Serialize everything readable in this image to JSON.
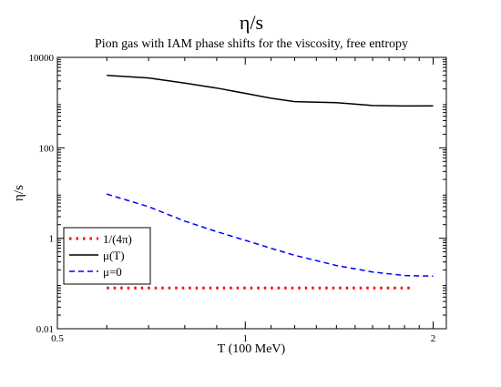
{
  "chart_data": {
    "type": "line",
    "title": "η/s",
    "subtitle": "Pion gas with IAM phase shifts for the viscosity, free entropy",
    "xlabel": "T (100 MeV)",
    "ylabel": "η/s",
    "xscale": "log",
    "yscale": "log",
    "xlim": [
      0.5,
      2.1
    ],
    "ylim": [
      0.01,
      10000
    ],
    "xticks": [
      {
        "value": 0.5,
        "label": "0.5"
      },
      {
        "value": 1,
        "label": "1"
      },
      {
        "value": 2,
        "label": "2"
      }
    ],
    "yticks": [
      {
        "value": 0.01,
        "label": "0.01"
      },
      {
        "value": 1,
        "label": "1"
      },
      {
        "value": 100,
        "label": "100"
      },
      {
        "value": 10000,
        "label": "10000"
      }
    ],
    "grid": false,
    "legend_position": "lower-left",
    "series": [
      {
        "name": "1/(4π)",
        "color": "#ff0000",
        "style": "dotted",
        "x": [
          0.6,
          0.8,
          1.0,
          1.2,
          1.4,
          1.6,
          1.85
        ],
        "y": [
          0.0796,
          0.0796,
          0.0796,
          0.0796,
          0.0796,
          0.0796,
          0.0796
        ]
      },
      {
        "name": "μ(T)",
        "color": "#000000",
        "style": "solid",
        "x": [
          0.6,
          0.7,
          0.8,
          0.9,
          1.0,
          1.1,
          1.2,
          1.4,
          1.6,
          1.8,
          2.0
        ],
        "y": [
          4000,
          3500,
          2700,
          2100,
          1600,
          1250,
          1050,
          1000,
          860,
          840,
          850
        ]
      },
      {
        "name": "μ=0",
        "color": "#0000ff",
        "style": "dashed",
        "x": [
          0.6,
          0.7,
          0.8,
          0.9,
          1.0,
          1.1,
          1.2,
          1.4,
          1.6,
          1.8,
          2.0
        ],
        "y": [
          9.5,
          5.0,
          2.4,
          1.4,
          0.9,
          0.6,
          0.42,
          0.25,
          0.18,
          0.15,
          0.145
        ]
      }
    ]
  }
}
